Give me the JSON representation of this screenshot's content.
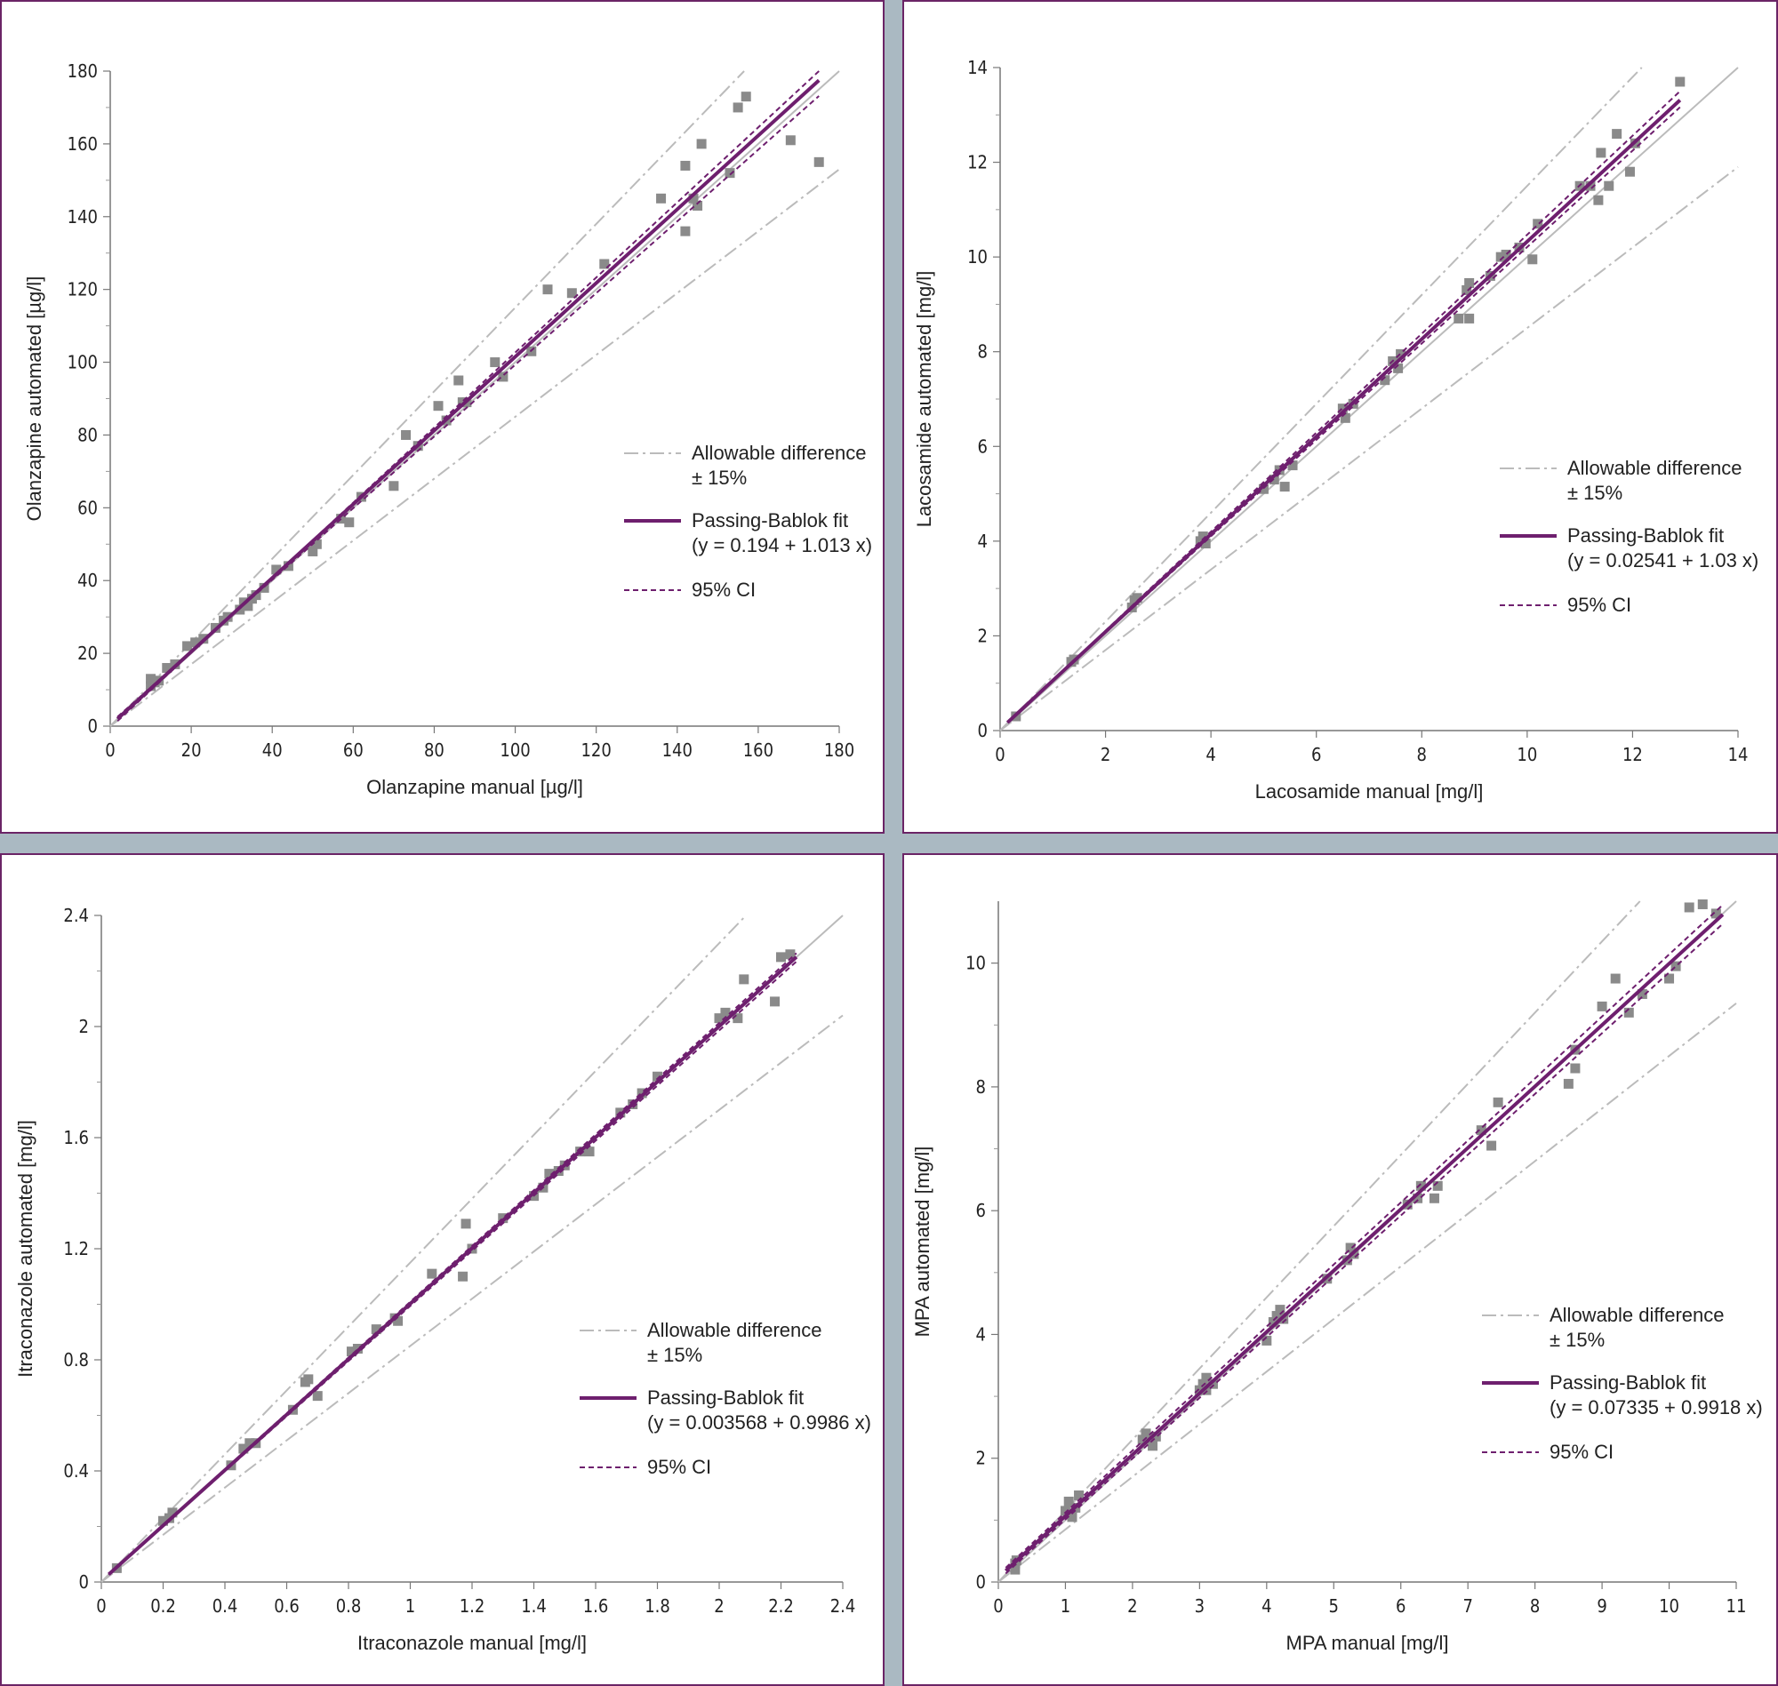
{
  "colors": {
    "separator": "#aab9c2",
    "frame": "#6b2466",
    "fit": "#6e1f6e",
    "ci": "#6e1f6e",
    "allowable": "#bbbbbb",
    "identity": "#bbbbbb",
    "points": "#8a8a8a"
  },
  "chart_data": [
    {
      "type": "scatter",
      "title": "",
      "xlabel": "Olanzapine manual [µg/l]",
      "ylabel": "Olanzapine automated [µg/l]",
      "xlim": [
        0,
        180
      ],
      "ylim": [
        0,
        180
      ],
      "xticks": [
        0,
        20,
        40,
        60,
        80,
        100,
        120,
        140,
        160,
        180
      ],
      "yticks": [
        0,
        20,
        40,
        60,
        80,
        100,
        120,
        140,
        160,
        180
      ],
      "xtick_labels": [
        "0",
        "20",
        "40",
        "60",
        "80",
        "100",
        "120",
        "140",
        "160",
        "180"
      ],
      "ytick_labels": [
        "0",
        "20",
        "40",
        "60",
        "80",
        "100",
        "120",
        "140",
        "160",
        "180"
      ],
      "fit": {
        "intercept": 0.194,
        "slope": 1.013
      },
      "ci": {
        "lower": {
          "intercept": 0.8,
          "slope": 0.985
        },
        "upper": {
          "intercept": -0.5,
          "slope": 1.055
        }
      },
      "allowable_difference": 0.15,
      "line_x_max": 175,
      "legend": {
        "allowable_title": "Allowable difference",
        "allowable_value": "± 15%",
        "fit_title": "Passing-Bablok fit",
        "fit_equation": "(y = 0.194 + 1.013 x)",
        "ci_label": "95% CI"
      },
      "points": [
        [
          10,
          11
        ],
        [
          10,
          13
        ],
        [
          11,
          12
        ],
        [
          12,
          12.5
        ],
        [
          14,
          16
        ],
        [
          16,
          17
        ],
        [
          19,
          22
        ],
        [
          21,
          23
        ],
        [
          23,
          24
        ],
        [
          26,
          27
        ],
        [
          28,
          29
        ],
        [
          29,
          30
        ],
        [
          32,
          32
        ],
        [
          33,
          34
        ],
        [
          34,
          33
        ],
        [
          35,
          35
        ],
        [
          36,
          36
        ],
        [
          38,
          38
        ],
        [
          41,
          43
        ],
        [
          44,
          44
        ],
        [
          50,
          48
        ],
        [
          51,
          50
        ],
        [
          57,
          57
        ],
        [
          59,
          56
        ],
        [
          62,
          63
        ],
        [
          70,
          66
        ],
        [
          73,
          80
        ],
        [
          76,
          77
        ],
        [
          81,
          88
        ],
        [
          83,
          84
        ],
        [
          86,
          95
        ],
        [
          87,
          89
        ],
        [
          88,
          89
        ],
        [
          95,
          100
        ],
        [
          97,
          96
        ],
        [
          104,
          103
        ],
        [
          108,
          120
        ],
        [
          114,
          119
        ],
        [
          122,
          127
        ],
        [
          136,
          145
        ],
        [
          142,
          136
        ],
        [
          142,
          154
        ],
        [
          144,
          145
        ],
        [
          145,
          143
        ],
        [
          146,
          160
        ],
        [
          153,
          152
        ],
        [
          155,
          170
        ],
        [
          157,
          173
        ],
        [
          168,
          161
        ],
        [
          175,
          155
        ]
      ]
    },
    {
      "type": "scatter",
      "title": "",
      "xlabel": "Lacosamide manual [mg/l]",
      "ylabel": "Lacosamide automated [mg/l]",
      "xlim": [
        0,
        14
      ],
      "ylim": [
        0,
        14
      ],
      "xticks": [
        0,
        2,
        4,
        6,
        8,
        10,
        12,
        14
      ],
      "yticks": [
        0,
        2,
        4,
        6,
        8,
        10,
        12,
        14
      ],
      "xtick_labels": [
        "0",
        "2",
        "4",
        "6",
        "8",
        "10",
        "12",
        "14"
      ],
      "ytick_labels": [
        "0",
        "2",
        "4",
        "6",
        "8",
        "10",
        "12",
        "14"
      ],
      "fit": {
        "intercept": 0.02541,
        "slope": 1.03
      },
      "ci": {
        "lower": {
          "intercept": 0.03,
          "slope": 1.018
        },
        "upper": {
          "intercept": 0.02,
          "slope": 1.045
        }
      },
      "allowable_difference": 0.15,
      "line_x_max": 12.9,
      "legend": {
        "allowable_title": "Allowable difference",
        "allowable_value": "± 15%",
        "fit_title": "Passing-Bablok fit",
        "fit_equation": "(y = 0.02541 + 1.03 x)",
        "ci_label": "95% CI"
      },
      "points": [
        [
          0.3,
          0.3
        ],
        [
          1.35,
          1.45
        ],
        [
          1.4,
          1.5
        ],
        [
          2.5,
          2.6
        ],
        [
          2.55,
          2.75
        ],
        [
          2.6,
          2.8
        ],
        [
          3.8,
          4.0
        ],
        [
          3.85,
          4.1
        ],
        [
          3.9,
          3.95
        ],
        [
          5.0,
          5.1
        ],
        [
          5.2,
          5.3
        ],
        [
          5.3,
          5.5
        ],
        [
          5.4,
          5.15
        ],
        [
          5.55,
          5.6
        ],
        [
          6.5,
          6.8
        ],
        [
          6.55,
          6.6
        ],
        [
          6.7,
          6.9
        ],
        [
          7.3,
          7.4
        ],
        [
          7.45,
          7.8
        ],
        [
          7.55,
          7.65
        ],
        [
          7.6,
          7.95
        ],
        [
          8.7,
          8.7
        ],
        [
          8.85,
          9.3
        ],
        [
          8.9,
          9.45
        ],
        [
          8.9,
          8.7
        ],
        [
          9.3,
          9.6
        ],
        [
          9.5,
          10.0
        ],
        [
          9.6,
          10.05
        ],
        [
          9.85,
          10.2
        ],
        [
          10.1,
          9.95
        ],
        [
          10.2,
          10.7
        ],
        [
          11.0,
          11.5
        ],
        [
          11.2,
          11.5
        ],
        [
          11.35,
          11.2
        ],
        [
          11.4,
          12.2
        ],
        [
          11.55,
          11.5
        ],
        [
          11.7,
          12.6
        ],
        [
          11.95,
          11.8
        ],
        [
          12.05,
          12.4
        ],
        [
          12.9,
          13.7
        ]
      ]
    },
    {
      "type": "scatter",
      "title": "",
      "xlabel": "Itraconazole manual [mg/l]",
      "ylabel": "Itraconazole automated [mg/l]",
      "xlim": [
        0,
        2.4
      ],
      "ylim": [
        0,
        2.4
      ],
      "xticks": [
        0,
        0.2,
        0.4,
        0.6,
        0.8,
        1.0,
        1.2,
        1.4,
        1.6,
        1.8,
        2.0,
        2.2,
        2.4
      ],
      "yticks": [
        0,
        0.4,
        0.8,
        1.2,
        1.6,
        2.0,
        2.4
      ],
      "xtick_labels": [
        "0",
        "0.2",
        "0.4",
        "0.6",
        "0.8",
        "1",
        "1.2",
        "1.4",
        "1.6",
        "1.8",
        "2",
        "2.2",
        "2.4"
      ],
      "ytick_labels": [
        "0",
        "0.4",
        "0.8",
        "1.2",
        "1.6",
        "2",
        "2.4"
      ],
      "fit": {
        "intercept": 0.003568,
        "slope": 0.9986
      },
      "ci": {
        "lower": {
          "intercept": 0.002,
          "slope": 0.992
        },
        "upper": {
          "intercept": 0.005,
          "slope": 1.004
        }
      },
      "allowable_difference": 0.15,
      "line_x_max": 2.25,
      "legend": {
        "allowable_title": "Allowable difference",
        "allowable_value": "± 15%",
        "fit_title": "Passing-Bablok fit",
        "fit_equation": "(y = 0.003568 + 0.9986 x)",
        "ci_label": "95% CI"
      },
      "points": [
        [
          0.05,
          0.05
        ],
        [
          0.2,
          0.22
        ],
        [
          0.22,
          0.23
        ],
        [
          0.23,
          0.25
        ],
        [
          0.42,
          0.42
        ],
        [
          0.46,
          0.48
        ],
        [
          0.48,
          0.5
        ],
        [
          0.5,
          0.5
        ],
        [
          0.62,
          0.62
        ],
        [
          0.66,
          0.72
        ],
        [
          0.67,
          0.73
        ],
        [
          0.7,
          0.67
        ],
        [
          0.81,
          0.83
        ],
        [
          0.83,
          0.84
        ],
        [
          0.89,
          0.91
        ],
        [
          0.95,
          0.95
        ],
        [
          0.96,
          0.94
        ],
        [
          1.07,
          1.11
        ],
        [
          1.17,
          1.1
        ],
        [
          1.18,
          1.29
        ],
        [
          1.2,
          1.2
        ],
        [
          1.3,
          1.31
        ],
        [
          1.4,
          1.39
        ],
        [
          1.43,
          1.42
        ],
        [
          1.45,
          1.47
        ],
        [
          1.48,
          1.48
        ],
        [
          1.5,
          1.5
        ],
        [
          1.55,
          1.55
        ],
        [
          1.58,
          1.55
        ],
        [
          1.68,
          1.69
        ],
        [
          1.72,
          1.72
        ],
        [
          1.75,
          1.76
        ],
        [
          1.8,
          1.82
        ],
        [
          2.0,
          2.03
        ],
        [
          2.02,
          2.05
        ],
        [
          2.06,
          2.03
        ],
        [
          2.08,
          2.17
        ],
        [
          2.18,
          2.09
        ],
        [
          2.2,
          2.25
        ],
        [
          2.23,
          2.26
        ]
      ]
    },
    {
      "type": "scatter",
      "title": "",
      "xlabel": "MPA manual [mg/l]",
      "ylabel": "MPA automated [mg/l]",
      "xlim": [
        0,
        11
      ],
      "ylim": [
        0,
        11
      ],
      "xticks": [
        0,
        1,
        2,
        3,
        4,
        5,
        6,
        7,
        8,
        9,
        10,
        11
      ],
      "yticks": [
        0,
        2,
        4,
        6,
        8,
        10
      ],
      "xtick_labels": [
        "0",
        "1",
        "2",
        "3",
        "4",
        "5",
        "6",
        "7",
        "8",
        "9",
        "10",
        "11"
      ],
      "ytick_labels": [
        "0",
        "2",
        "4",
        "6",
        "8",
        "10"
      ],
      "fit": {
        "intercept": 0.07335,
        "slope": 0.9918
      },
      "ci": {
        "lower": {
          "intercept": 0.03,
          "slope": 0.982
        },
        "upper": {
          "intercept": 0.12,
          "slope": 1.002
        }
      },
      "allowable_difference": 0.15,
      "line_x_max": 10.8,
      "legend": {
        "allowable_title": "Allowable difference",
        "allowable_value": "± 15%",
        "fit_title": "Passing-Bablok fit",
        "fit_equation": "(y = 0.07335 + 0.9918 x)",
        "ci_label": "95% CI"
      },
      "points": [
        [
          0.25,
          0.2
        ],
        [
          0.25,
          0.3
        ],
        [
          0.27,
          0.35
        ],
        [
          1.0,
          1.15
        ],
        [
          1.05,
          1.3
        ],
        [
          1.1,
          1.05
        ],
        [
          1.15,
          1.2
        ],
        [
          1.2,
          1.4
        ],
        [
          2.15,
          2.3
        ],
        [
          2.2,
          2.4
        ],
        [
          2.3,
          2.2
        ],
        [
          2.35,
          2.35
        ],
        [
          3.0,
          3.1
        ],
        [
          3.05,
          3.2
        ],
        [
          3.1,
          3.3
        ],
        [
          3.1,
          3.1
        ],
        [
          3.2,
          3.2
        ],
        [
          4.0,
          3.9
        ],
        [
          4.1,
          4.2
        ],
        [
          4.15,
          4.3
        ],
        [
          4.2,
          4.4
        ],
        [
          4.25,
          4.25
        ],
        [
          4.9,
          4.9
        ],
        [
          5.2,
          5.2
        ],
        [
          5.25,
          5.4
        ],
        [
          5.3,
          5.3
        ],
        [
          6.1,
          6.1
        ],
        [
          6.25,
          6.2
        ],
        [
          6.3,
          6.4
        ],
        [
          6.5,
          6.2
        ],
        [
          6.55,
          6.4
        ],
        [
          7.2,
          7.3
        ],
        [
          7.35,
          7.05
        ],
        [
          7.45,
          7.75
        ],
        [
          8.5,
          8.05
        ],
        [
          8.6,
          8.3
        ],
        [
          8.6,
          8.6
        ],
        [
          9.0,
          9.3
        ],
        [
          9.2,
          9.75
        ],
        [
          9.4,
          9.2
        ],
        [
          9.6,
          9.5
        ],
        [
          10.0,
          9.75
        ],
        [
          10.1,
          9.95
        ],
        [
          10.3,
          10.9
        ],
        [
          10.5,
          10.95
        ],
        [
          10.7,
          10.8
        ]
      ]
    }
  ]
}
